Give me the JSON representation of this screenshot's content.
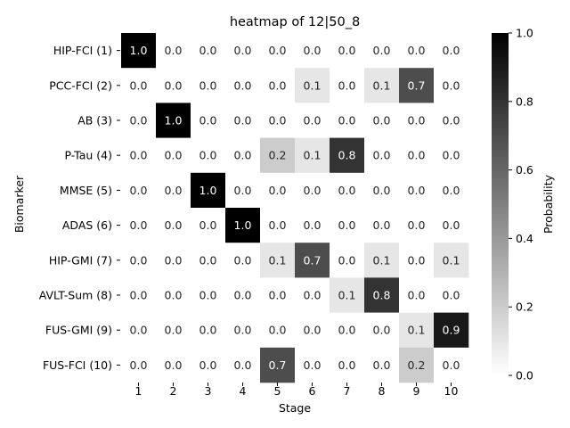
{
  "chart_data": {
    "type": "heatmap",
    "title": "heatmap of 12|50_8",
    "xlabel": "Stage",
    "ylabel": "Biomarker",
    "x_categories": [
      "1",
      "2",
      "3",
      "4",
      "5",
      "6",
      "7",
      "8",
      "9",
      "10"
    ],
    "y_categories": [
      "HIP-FCI (1)",
      "PCC-FCI (2)",
      "AB (3)",
      "P-Tau (4)",
      "MMSE (5)",
      "ADAS (6)",
      "HIP-GMI (7)",
      "AVLT-Sum (8)",
      "FUS-GMI (9)",
      "FUS-FCI (10)"
    ],
    "values": [
      [
        1.0,
        0.0,
        0.0,
        0.0,
        0.0,
        0.0,
        0.0,
        0.0,
        0.0,
        0.0
      ],
      [
        0.0,
        0.0,
        0.0,
        0.0,
        0.0,
        0.1,
        0.0,
        0.1,
        0.7,
        0.0
      ],
      [
        0.0,
        1.0,
        0.0,
        0.0,
        0.0,
        0.0,
        0.0,
        0.0,
        0.0,
        0.0
      ],
      [
        0.0,
        0.0,
        0.0,
        0.0,
        0.2,
        0.1,
        0.8,
        0.0,
        0.0,
        0.0
      ],
      [
        0.0,
        0.0,
        1.0,
        0.0,
        0.0,
        0.0,
        0.0,
        0.0,
        0.0,
        0.0
      ],
      [
        0.0,
        0.0,
        0.0,
        1.0,
        0.0,
        0.0,
        0.0,
        0.0,
        0.0,
        0.0
      ],
      [
        0.0,
        0.0,
        0.0,
        0.0,
        0.1,
        0.7,
        0.0,
        0.1,
        0.0,
        0.1
      ],
      [
        0.0,
        0.0,
        0.0,
        0.0,
        0.0,
        0.0,
        0.1,
        0.8,
        0.0,
        0.0
      ],
      [
        0.0,
        0.0,
        0.0,
        0.0,
        0.0,
        0.0,
        0.0,
        0.0,
        0.1,
        0.9
      ],
      [
        0.0,
        0.0,
        0.0,
        0.0,
        0.7,
        0.0,
        0.0,
        0.0,
        0.2,
        0.0
      ]
    ],
    "colorbar": {
      "label": "Probability",
      "range": [
        0.0,
        1.0
      ],
      "ticks": [
        "0.0",
        "0.2",
        "0.4",
        "0.6",
        "0.8",
        "1.0"
      ],
      "colormap": "Greys",
      "low_color": "#ffffff",
      "high_color": "#000000"
    },
    "annotations_format": "one decimal"
  }
}
